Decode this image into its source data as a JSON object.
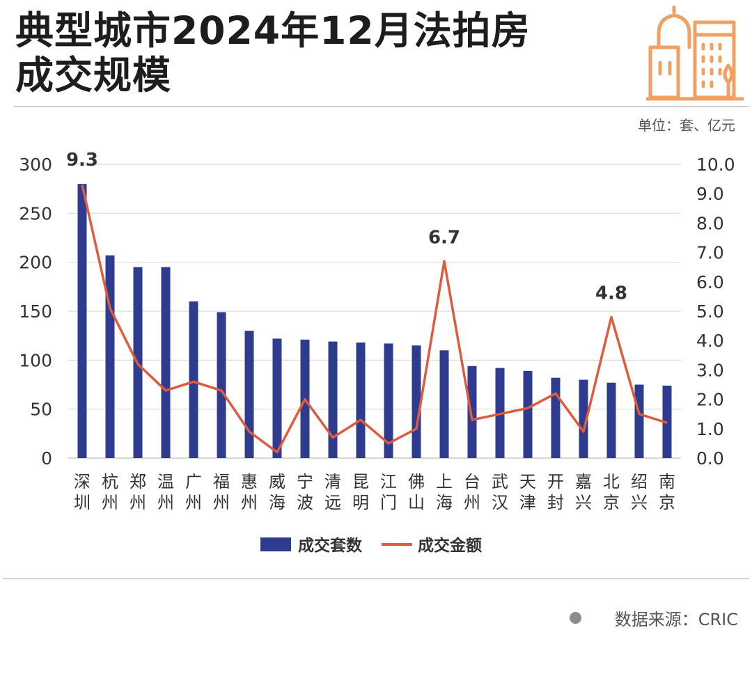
{
  "header": {
    "title_line1": "典型城市2024年12月法拍房",
    "title_line2": "成交规模",
    "unit": "单位：套、亿元",
    "logo_icon": "city-buildings-icon",
    "accent_color": "#f0a062"
  },
  "source": {
    "label": "数据来源：CRIC"
  },
  "chart_data": {
    "type": "bar+line",
    "categories": [
      "深圳",
      "杭州",
      "郑州",
      "温州",
      "广州",
      "福州",
      "惠州",
      "威海",
      "宁波",
      "清远",
      "昆明",
      "江门",
      "佛山",
      "上海",
      "台州",
      "武汉",
      "天津",
      "开封",
      "嘉兴",
      "北京",
      "绍兴",
      "南京"
    ],
    "series": [
      {
        "name": "成交套数",
        "type": "bar",
        "axis": "left",
        "color": "#2f3b8f",
        "values": [
          280,
          207,
          195,
          195,
          160,
          149,
          130,
          122,
          121,
          119,
          118,
          117,
          115,
          110,
          94,
          92,
          89,
          82,
          80,
          77,
          75,
          74
        ]
      },
      {
        "name": "成交金额",
        "type": "line",
        "axis": "right",
        "color": "#e05a3c",
        "values": [
          9.3,
          5.1,
          3.2,
          2.3,
          2.6,
          2.3,
          0.9,
          0.2,
          2.0,
          0.7,
          1.3,
          0.5,
          1.0,
          6.7,
          1.3,
          1.5,
          1.7,
          2.2,
          0.9,
          4.8,
          1.5,
          1.2
        ]
      }
    ],
    "annotations": [
      {
        "category": "深圳",
        "text": "9.3"
      },
      {
        "category": "上海",
        "text": "6.7"
      },
      {
        "category": "北京",
        "text": "4.8"
      }
    ],
    "y_left": {
      "min": 0,
      "max": 300,
      "ticks": [
        "0",
        "50",
        "100",
        "150",
        "200",
        "250",
        "300"
      ]
    },
    "y_right": {
      "min": 0,
      "max": 10,
      "ticks": [
        "0.0",
        "1.0",
        "2.0",
        "3.0",
        "4.0",
        "5.0",
        "6.0",
        "7.0",
        "8.0",
        "9.0",
        "10.0"
      ]
    },
    "grid": true,
    "legend_position": "bottom"
  }
}
